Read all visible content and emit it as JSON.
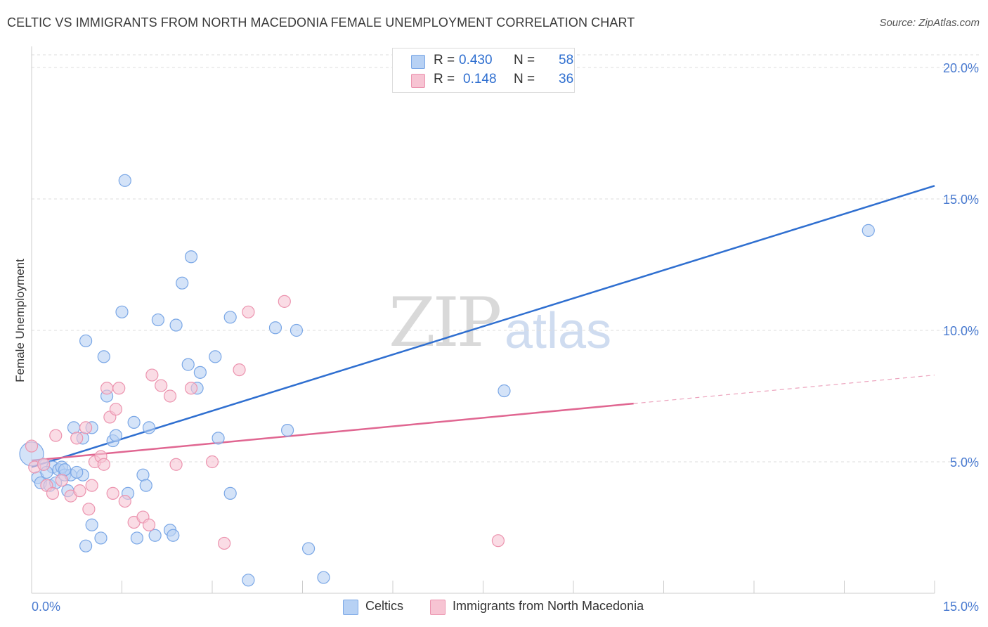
{
  "title": "CELTIC VS IMMIGRANTS FROM NORTH MACEDONIA FEMALE UNEMPLOYMENT CORRELATION CHART",
  "source": "Source: ZipAtlas.com",
  "watermark": {
    "zip": "ZIP",
    "atlas": "atlas"
  },
  "legend": {
    "rows": [
      {
        "r_label": "R =",
        "r_value": "0.430",
        "n_label": "N =",
        "n_value": "58",
        "color": "#a9c8f2"
      },
      {
        "r_label": "R =",
        "r_value": "0.148",
        "n_label": "N =",
        "n_value": "36",
        "color": "#f7bccd"
      }
    ]
  },
  "bottom_legend": [
    {
      "label": "Celtics",
      "color": "#a9c8f2"
    },
    {
      "label": "Immigrants from North Macedonia",
      "color": "#f7bccd"
    }
  ],
  "chart_data": {
    "type": "scatter",
    "title": "CELTIC VS IMMIGRANTS FROM NORTH MACEDONIA FEMALE UNEMPLOYMENT CORRELATION CHART",
    "xlabel": "",
    "ylabel": "Female Unemployment",
    "xlim": [
      0,
      15
    ],
    "ylim": [
      0,
      20
    ],
    "x_tick_labels": [
      "0.0%",
      "15.0%"
    ],
    "y_ticks": [
      5,
      10,
      15,
      20
    ],
    "y_tick_labels": [
      "5.0%",
      "10.0%",
      "15.0%",
      "20.0%"
    ],
    "grid": true,
    "series": [
      {
        "name": "Celtics",
        "color": "#7aa7e6",
        "fill": "#b7d1f4",
        "line_color": "#2f6fd0",
        "trend": {
          "x0": 0,
          "y0": 4.8,
          "x1": 15,
          "y1": 15.5,
          "dash_from": null
        },
        "points": [
          [
            0.0,
            5.3
          ],
          [
            0.1,
            4.4
          ],
          [
            0.15,
            4.2
          ],
          [
            0.2,
            4.9
          ],
          [
            0.3,
            4.1
          ],
          [
            0.35,
            4.8
          ],
          [
            0.4,
            4.2
          ],
          [
            0.45,
            4.7
          ],
          [
            0.5,
            4.8
          ],
          [
            0.55,
            4.5
          ],
          [
            0.6,
            3.9
          ],
          [
            0.65,
            4.5
          ],
          [
            0.7,
            6.3
          ],
          [
            0.85,
            4.5
          ],
          [
            0.85,
            5.9
          ],
          [
            0.9,
            1.8
          ],
          [
            1.0,
            2.6
          ],
          [
            1.0,
            6.3
          ],
          [
            1.15,
            2.1
          ],
          [
            1.2,
            9.0
          ],
          [
            1.35,
            5.8
          ],
          [
            1.4,
            6.0
          ],
          [
            1.5,
            10.7
          ],
          [
            1.55,
            15.7
          ],
          [
            1.6,
            3.8
          ],
          [
            1.7,
            6.5
          ],
          [
            1.75,
            2.1
          ],
          [
            1.85,
            4.5
          ],
          [
            1.9,
            4.1
          ],
          [
            1.95,
            6.3
          ],
          [
            2.05,
            2.2
          ],
          [
            2.1,
            10.4
          ],
          [
            2.3,
            2.4
          ],
          [
            2.35,
            2.2
          ],
          [
            2.4,
            10.2
          ],
          [
            2.5,
            11.8
          ],
          [
            2.6,
            8.7
          ],
          [
            2.65,
            12.8
          ],
          [
            2.75,
            7.8
          ],
          [
            2.8,
            8.4
          ],
          [
            3.05,
            9.0
          ],
          [
            3.1,
            5.9
          ],
          [
            3.3,
            3.8
          ],
          [
            3.3,
            10.5
          ],
          [
            3.6,
            0.5
          ],
          [
            4.05,
            10.1
          ],
          [
            4.25,
            6.2
          ],
          [
            4.4,
            10.0
          ],
          [
            4.6,
            1.7
          ],
          [
            4.85,
            0.6
          ],
          [
            7.85,
            7.7
          ],
          [
            8.05,
            19.4
          ],
          [
            13.9,
            13.8
          ],
          [
            0.9,
            9.6
          ],
          [
            0.25,
            4.6
          ],
          [
            0.55,
            4.7
          ],
          [
            0.75,
            4.6
          ],
          [
            1.25,
            7.5
          ]
        ]
      },
      {
        "name": "Immigrants from North Macedonia",
        "color": "#ec94af",
        "fill": "#f7c4d3",
        "line_color": "#e06691",
        "trend": {
          "x0": 0,
          "y0": 5.05,
          "x1": 15,
          "y1": 8.3,
          "dash_from": 10.0
        },
        "points": [
          [
            0.0,
            5.6
          ],
          [
            0.05,
            4.8
          ],
          [
            0.2,
            4.9
          ],
          [
            0.25,
            4.1
          ],
          [
            0.35,
            3.8
          ],
          [
            0.4,
            6.0
          ],
          [
            0.5,
            4.3
          ],
          [
            0.65,
            3.7
          ],
          [
            0.75,
            5.9
          ],
          [
            0.8,
            3.9
          ],
          [
            0.9,
            6.3
          ],
          [
            0.95,
            3.2
          ],
          [
            1.0,
            4.1
          ],
          [
            1.05,
            5.0
          ],
          [
            1.15,
            5.2
          ],
          [
            1.2,
            4.9
          ],
          [
            1.3,
            6.7
          ],
          [
            1.35,
            3.8
          ],
          [
            1.4,
            7.0
          ],
          [
            1.45,
            7.8
          ],
          [
            1.55,
            3.5
          ],
          [
            1.7,
            2.7
          ],
          [
            1.85,
            2.9
          ],
          [
            1.95,
            2.6
          ],
          [
            2.0,
            8.3
          ],
          [
            2.15,
            7.9
          ],
          [
            2.3,
            7.5
          ],
          [
            2.4,
            4.9
          ],
          [
            2.65,
            7.8
          ],
          [
            3.0,
            5.0
          ],
          [
            3.2,
            1.9
          ],
          [
            3.45,
            8.5
          ],
          [
            3.6,
            10.7
          ],
          [
            4.2,
            11.1
          ],
          [
            7.75,
            2.0
          ],
          [
            1.25,
            7.8
          ]
        ]
      }
    ]
  }
}
